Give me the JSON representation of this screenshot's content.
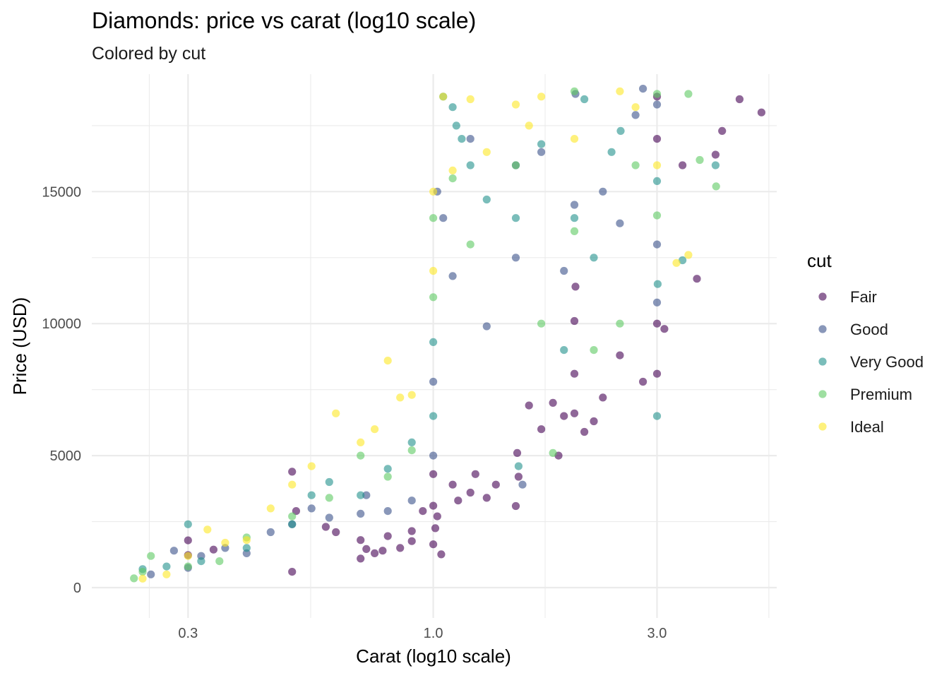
{
  "chart_data": {
    "type": "scatter",
    "title": "Diamonds: price vs carat (log10 scale)",
    "subtitle": "Colored by cut",
    "xlabel": "Carat (log10 scale)",
    "ylabel": "Price (USD)",
    "x_scale": "log10",
    "xlim": [
      0.187,
      5.4
    ],
    "ylim": [
      -1150,
      19450
    ],
    "x_ticks": [
      0.3,
      1.0,
      3.0
    ],
    "x_tick_labels": [
      "0.3",
      "1.0",
      "3.0"
    ],
    "y_ticks": [
      0,
      5000,
      10000,
      15000
    ],
    "y_tick_labels": [
      "0",
      "5000",
      "10000",
      "15000"
    ],
    "grid": true,
    "legend": {
      "title": "cut",
      "position": "right"
    },
    "point_opacity": 0.6,
    "series": [
      {
        "name": "Fair",
        "color": "#440154",
        "points": [
          [
            0.3,
            1790
          ],
          [
            0.3,
            1230
          ],
          [
            0.34,
            1440
          ],
          [
            0.5,
            4390
          ],
          [
            0.5,
            600
          ],
          [
            0.51,
            2900
          ],
          [
            0.59,
            2300
          ],
          [
            0.62,
            2100
          ],
          [
            0.7,
            1800
          ],
          [
            0.7,
            1100
          ],
          [
            0.72,
            1460
          ],
          [
            0.75,
            1300
          ],
          [
            0.78,
            1400
          ],
          [
            0.8,
            1950
          ],
          [
            0.85,
            1500
          ],
          [
            0.9,
            1760
          ],
          [
            0.9,
            2140
          ],
          [
            0.95,
            2900
          ],
          [
            1.0,
            1640
          ],
          [
            1.0,
            3100
          ],
          [
            1.0,
            4300
          ],
          [
            1.01,
            2250
          ],
          [
            1.02,
            2700
          ],
          [
            1.04,
            1260
          ],
          [
            1.1,
            3900
          ],
          [
            1.13,
            3300
          ],
          [
            1.2,
            3600
          ],
          [
            1.23,
            4300
          ],
          [
            1.3,
            3400
          ],
          [
            1.36,
            3900
          ],
          [
            1.5,
            3090
          ],
          [
            1.51,
            5100
          ],
          [
            1.52,
            4200
          ],
          [
            1.6,
            6900
          ],
          [
            1.7,
            6000
          ],
          [
            1.8,
            7000
          ],
          [
            1.85,
            5000
          ],
          [
            1.9,
            6500
          ],
          [
            2.0,
            6600
          ],
          [
            2.0,
            8100
          ],
          [
            2.0,
            10100
          ],
          [
            2.01,
            11400
          ],
          [
            2.1,
            5900
          ],
          [
            2.2,
            6300
          ],
          [
            2.3,
            7200
          ],
          [
            2.5,
            8800
          ],
          [
            2.8,
            7800
          ],
          [
            3.0,
            10000
          ],
          [
            3.0,
            8100
          ],
          [
            3.0,
            17000
          ],
          [
            3.0,
            18600
          ],
          [
            3.11,
            9800
          ],
          [
            3.4,
            16000
          ],
          [
            3.65,
            11700
          ],
          [
            4.0,
            16400
          ],
          [
            4.13,
            17300
          ],
          [
            4.5,
            18500
          ],
          [
            5.01,
            18000
          ]
        ]
      },
      {
        "name": "Good",
        "color": "#3b528b",
        "points": [
          [
            0.25,
            500
          ],
          [
            0.28,
            1400
          ],
          [
            0.3,
            750
          ],
          [
            0.32,
            1200
          ],
          [
            0.36,
            1500
          ],
          [
            0.4,
            1300
          ],
          [
            0.45,
            2100
          ],
          [
            0.5,
            2400
          ],
          [
            0.55,
            3000
          ],
          [
            0.6,
            2650
          ],
          [
            0.7,
            2800
          ],
          [
            0.72,
            3500
          ],
          [
            0.8,
            2900
          ],
          [
            0.9,
            3300
          ],
          [
            1.0,
            5000
          ],
          [
            1.0,
            7800
          ],
          [
            1.02,
            15000
          ],
          [
            1.05,
            14000
          ],
          [
            1.1,
            11800
          ],
          [
            1.2,
            17000
          ],
          [
            1.3,
            9900
          ],
          [
            1.5,
            12500
          ],
          [
            1.5,
            16000
          ],
          [
            1.55,
            3900
          ],
          [
            1.7,
            16500
          ],
          [
            1.9,
            12000
          ],
          [
            2.0,
            14500
          ],
          [
            2.01,
            18700
          ],
          [
            2.3,
            15000
          ],
          [
            2.5,
            13800
          ],
          [
            2.7,
            17900
          ],
          [
            2.8,
            18900
          ],
          [
            3.0,
            10800
          ],
          [
            3.0,
            18300
          ],
          [
            3.0,
            13000
          ]
        ]
      },
      {
        "name": "Very Good",
        "color": "#21918c",
        "points": [
          [
            0.24,
            700
          ],
          [
            0.27,
            800
          ],
          [
            0.3,
            2400
          ],
          [
            0.32,
            1000
          ],
          [
            0.4,
            1500
          ],
          [
            0.5,
            2400
          ],
          [
            0.55,
            3500
          ],
          [
            0.6,
            4000
          ],
          [
            0.7,
            3500
          ],
          [
            0.8,
            4500
          ],
          [
            0.9,
            5500
          ],
          [
            1.0,
            6500
          ],
          [
            1.0,
            9300
          ],
          [
            1.05,
            18600
          ],
          [
            1.1,
            18200
          ],
          [
            1.12,
            17500
          ],
          [
            1.15,
            17000
          ],
          [
            1.2,
            16000
          ],
          [
            1.3,
            14700
          ],
          [
            1.5,
            14000
          ],
          [
            1.52,
            4600
          ],
          [
            1.7,
            16800
          ],
          [
            1.9,
            9000
          ],
          [
            2.0,
            14000
          ],
          [
            2.1,
            18500
          ],
          [
            2.2,
            12500
          ],
          [
            2.4,
            16500
          ],
          [
            2.51,
            17300
          ],
          [
            3.0,
            6500
          ],
          [
            3.0,
            15400
          ],
          [
            3.01,
            11500
          ],
          [
            3.4,
            12400
          ],
          [
            4.0,
            16000
          ]
        ]
      },
      {
        "name": "Premium",
        "color": "#5ec962",
        "points": [
          [
            0.23,
            350
          ],
          [
            0.24,
            600
          ],
          [
            0.25,
            1200
          ],
          [
            0.3,
            800
          ],
          [
            0.35,
            1000
          ],
          [
            0.4,
            1900
          ],
          [
            0.5,
            2700
          ],
          [
            0.6,
            3400
          ],
          [
            0.7,
            5000
          ],
          [
            0.8,
            4200
          ],
          [
            0.9,
            5200
          ],
          [
            1.0,
            11000
          ],
          [
            1.0,
            14000
          ],
          [
            1.1,
            15500
          ],
          [
            1.2,
            13000
          ],
          [
            1.5,
            16000
          ],
          [
            1.7,
            10000
          ],
          [
            1.8,
            5100
          ],
          [
            2.0,
            13500
          ],
          [
            2.0,
            18800
          ],
          [
            2.2,
            9000
          ],
          [
            2.5,
            10000
          ],
          [
            2.7,
            16000
          ],
          [
            3.0,
            14100
          ],
          [
            3.0,
            18700
          ],
          [
            3.5,
            18700
          ],
          [
            3.7,
            16200
          ],
          [
            4.01,
            15200
          ]
        ]
      },
      {
        "name": "Ideal",
        "color": "#fde725",
        "points": [
          [
            0.24,
            340
          ],
          [
            0.27,
            500
          ],
          [
            0.3,
            1200
          ],
          [
            0.33,
            2200
          ],
          [
            0.36,
            1700
          ],
          [
            0.4,
            1800
          ],
          [
            0.45,
            3000
          ],
          [
            0.5,
            3900
          ],
          [
            0.55,
            4600
          ],
          [
            0.62,
            6600
          ],
          [
            0.7,
            5500
          ],
          [
            0.75,
            6000
          ],
          [
            0.8,
            8600
          ],
          [
            0.85,
            7200
          ],
          [
            0.9,
            7300
          ],
          [
            1.0,
            12000
          ],
          [
            1.0,
            15000
          ],
          [
            1.05,
            18600
          ],
          [
            1.1,
            15800
          ],
          [
            1.2,
            18500
          ],
          [
            1.3,
            16500
          ],
          [
            1.5,
            18300
          ],
          [
            1.6,
            17500
          ],
          [
            1.7,
            18600
          ],
          [
            2.0,
            17000
          ],
          [
            2.5,
            18800
          ],
          [
            2.7,
            18200
          ],
          [
            3.0,
            16000
          ],
          [
            3.3,
            12300
          ],
          [
            3.5,
            12600
          ]
        ]
      }
    ]
  }
}
